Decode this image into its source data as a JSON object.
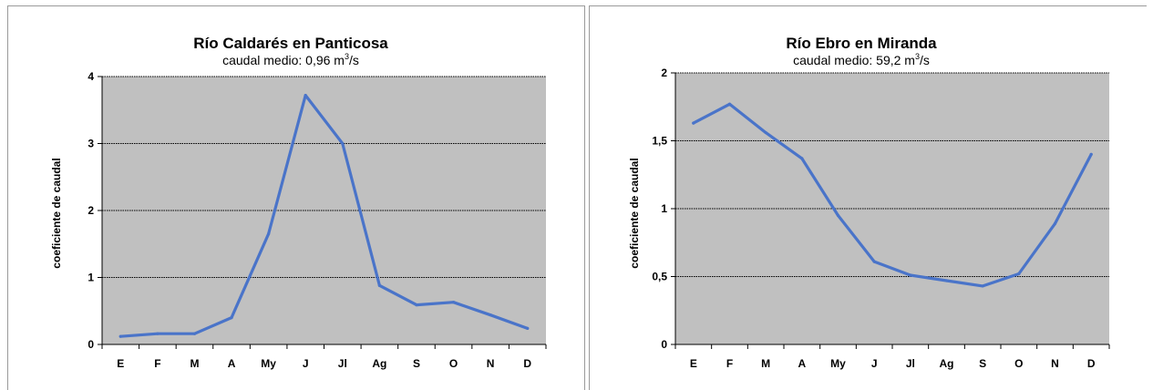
{
  "chart_data": [
    {
      "type": "line",
      "title": "Río Caldarés en Panticosa",
      "subtitle": {
        "text": "caudal medio: 0,96 m",
        "sup": "3",
        "suffix": "/s"
      },
      "xlabel": "",
      "ylabel": "coeficiente de caudal",
      "categories": [
        "E",
        "F",
        "M",
        "A",
        "My",
        "J",
        "Jl",
        "Ag",
        "S",
        "O",
        "N",
        "D"
      ],
      "series": [
        {
          "values": [
            0.12,
            0.16,
            0.16,
            0.4,
            1.65,
            3.72,
            3.0,
            0.88,
            0.59,
            0.63,
            0.44,
            0.24
          ]
        }
      ],
      "ylim": [
        0,
        4
      ],
      "yticks": [
        0,
        1,
        2,
        3,
        4
      ],
      "ytick_labels": [
        "0",
        "1",
        "2",
        "3",
        "4"
      ],
      "grid": true,
      "plot_background": "#c0c0c0",
      "line_color": "#4a74c9"
    },
    {
      "type": "line",
      "title": "Río Ebro en Miranda",
      "subtitle": {
        "text": "caudal medio: 59,2 m",
        "sup": "3",
        "suffix": "/s"
      },
      "xlabel": "",
      "ylabel": "coeficiente de caudal",
      "categories": [
        "E",
        "F",
        "M",
        "A",
        "My",
        "J",
        "Jl",
        "Ag",
        "S",
        "O",
        "N",
        "D"
      ],
      "series": [
        {
          "values": [
            1.63,
            1.77,
            1.56,
            1.37,
            0.95,
            0.61,
            0.51,
            0.47,
            0.43,
            0.52,
            0.89,
            1.4
          ]
        }
      ],
      "ylim": [
        0,
        2
      ],
      "yticks": [
        0,
        0.5,
        1,
        1.5,
        2
      ],
      "ytick_labels": [
        "0",
        "0,5",
        "1",
        "1,5",
        "2"
      ],
      "grid": true,
      "plot_background": "#c0c0c0",
      "line_color": "#4a74c9"
    }
  ]
}
